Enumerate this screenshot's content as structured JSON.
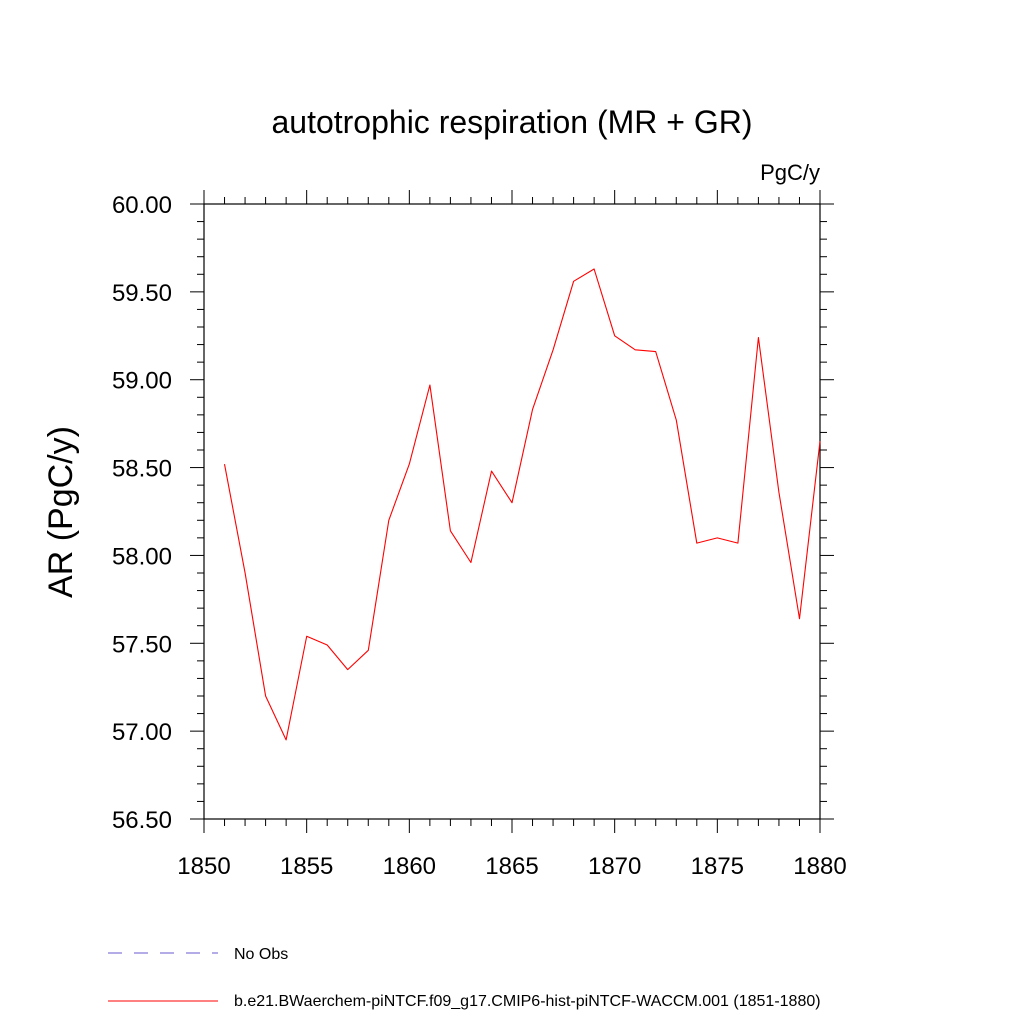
{
  "chart_data": {
    "type": "line",
    "title": "autotrophic respiration (MR + GR)",
    "units": "PgC/y",
    "xlabel": "",
    "ylabel": "AR  (PgC/y)",
    "xlim": [
      1850,
      1880
    ],
    "ylim": [
      56.5,
      60.0
    ],
    "x_ticks": [
      1850,
      1855,
      1860,
      1865,
      1870,
      1875,
      1880
    ],
    "x_tick_labels": [
      "1850",
      "1855",
      "1860",
      "1865",
      "1870",
      "1875",
      "1880"
    ],
    "y_ticks": [
      56.5,
      57.0,
      57.5,
      58.0,
      58.5,
      59.0,
      59.5,
      60.0
    ],
    "y_tick_labels": [
      "56.50",
      "57.00",
      "57.50",
      "58.00",
      "58.50",
      "59.00",
      "59.50",
      "60.00"
    ],
    "grid": false,
    "legend_position": "bottom",
    "legend": [
      {
        "label": "No Obs",
        "color": "#6a5acd",
        "style": "dashed"
      },
      {
        "label": "b.e21.BWaerchem-piNTCF.f09_g17.CMIP6-hist-piNTCF-WACCM.001 (1851-1880)",
        "color": "#ff0000",
        "style": "solid"
      }
    ],
    "series": [
      {
        "name": "b.e21.BWaerchem-piNTCF.f09_g17.CMIP6-hist-piNTCF-WACCM.001 (1851-1880)",
        "color": "#ff0000",
        "x": [
          1851,
          1852,
          1853,
          1854,
          1855,
          1856,
          1857,
          1858,
          1859,
          1860,
          1861,
          1862,
          1863,
          1864,
          1865,
          1866,
          1867,
          1868,
          1869,
          1870,
          1871,
          1872,
          1873,
          1874,
          1875,
          1876,
          1877,
          1878,
          1879,
          1880
        ],
        "y": [
          58.52,
          57.9,
          57.2,
          56.95,
          57.54,
          57.49,
          57.35,
          57.46,
          58.2,
          58.52,
          58.97,
          58.14,
          57.96,
          58.48,
          58.3,
          58.83,
          59.17,
          59.56,
          59.63,
          59.25,
          59.17,
          59.16,
          58.77,
          58.07,
          58.1,
          58.07,
          59.24,
          58.36,
          57.64,
          58.65
        ]
      }
    ]
  }
}
